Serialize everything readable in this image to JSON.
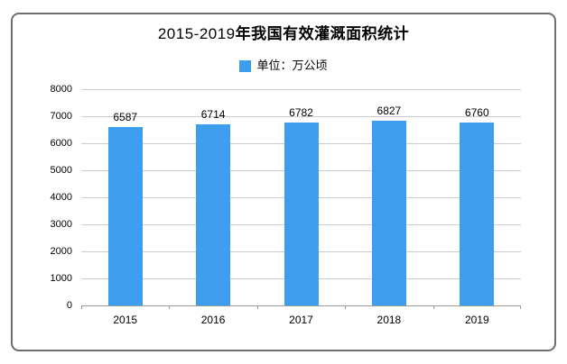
{
  "colors": {
    "bar": "#3D9EF0",
    "gridline": "#CCCCCC",
    "axis": "#999999",
    "text": "#000000",
    "card_border": "#6E6E6E"
  },
  "chart_data": {
    "type": "bar",
    "title": "2015-2019年我国有效灌溉面积统计",
    "title_parts": {
      "prefix": "2015-2019",
      "main": "年我国有效灌溉面积统计"
    },
    "unit_label": "单位：万公顷",
    "categories": [
      "2015",
      "2016",
      "2017",
      "2018",
      "2019"
    ],
    "values": [
      6587,
      6714,
      6782,
      6827,
      6760
    ],
    "xlabel": "",
    "ylabel": "",
    "ylim": [
      0,
      8000
    ],
    "ytick_step": 1000,
    "grid": true,
    "legend_position": "top-center",
    "bar_color": "#3D9EF0"
  }
}
